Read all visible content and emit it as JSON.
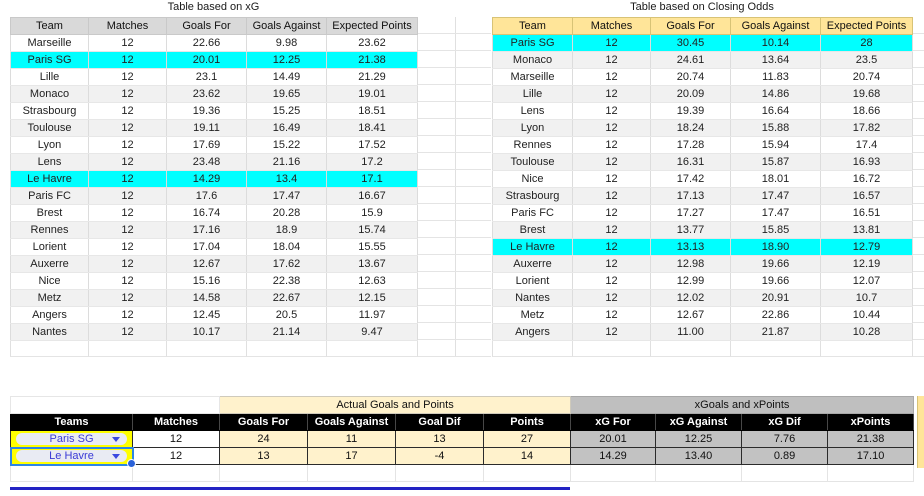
{
  "shared_columns": [
    "Team",
    "Matches",
    "Goals For",
    "Goals Against",
    "Expected Points"
  ],
  "xg_table": {
    "title": "Table based on xG",
    "rows": [
      {
        "team": "Marseille",
        "matches": "12",
        "goals_for": "22.66",
        "goals_against": "9.98",
        "expected_points": "23.62",
        "highlight": false
      },
      {
        "team": "Paris SG",
        "matches": "12",
        "goals_for": "20.01",
        "goals_against": "12.25",
        "expected_points": "21.38",
        "highlight": true
      },
      {
        "team": "Lille",
        "matches": "12",
        "goals_for": "23.1",
        "goals_against": "14.49",
        "expected_points": "21.29",
        "highlight": false
      },
      {
        "team": "Monaco",
        "matches": "12",
        "goals_for": "23.62",
        "goals_against": "19.65",
        "expected_points": "19.01",
        "highlight": false
      },
      {
        "team": "Strasbourg",
        "matches": "12",
        "goals_for": "19.36",
        "goals_against": "15.25",
        "expected_points": "18.51",
        "highlight": false
      },
      {
        "team": "Toulouse",
        "matches": "12",
        "goals_for": "19.11",
        "goals_against": "16.49",
        "expected_points": "18.41",
        "highlight": false
      },
      {
        "team": "Lyon",
        "matches": "12",
        "goals_for": "17.69",
        "goals_against": "15.22",
        "expected_points": "17.52",
        "highlight": false
      },
      {
        "team": "Lens",
        "matches": "12",
        "goals_for": "23.48",
        "goals_against": "21.16",
        "expected_points": "17.2",
        "highlight": false
      },
      {
        "team": "Le Havre",
        "matches": "12",
        "goals_for": "14.29",
        "goals_against": "13.4",
        "expected_points": "17.1",
        "highlight": true
      },
      {
        "team": "Paris FC",
        "matches": "12",
        "goals_for": "17.6",
        "goals_against": "17.47",
        "expected_points": "16.67",
        "highlight": false
      },
      {
        "team": "Brest",
        "matches": "12",
        "goals_for": "16.74",
        "goals_against": "20.28",
        "expected_points": "15.9",
        "highlight": false
      },
      {
        "team": "Rennes",
        "matches": "12",
        "goals_for": "17.16",
        "goals_against": "18.9",
        "expected_points": "15.74",
        "highlight": false
      },
      {
        "team": "Lorient",
        "matches": "12",
        "goals_for": "17.04",
        "goals_against": "18.04",
        "expected_points": "15.55",
        "highlight": false
      },
      {
        "team": "Auxerre",
        "matches": "12",
        "goals_for": "12.67",
        "goals_against": "17.62",
        "expected_points": "13.67",
        "highlight": false
      },
      {
        "team": "Nice",
        "matches": "12",
        "goals_for": "15.16",
        "goals_against": "22.38",
        "expected_points": "12.63",
        "highlight": false
      },
      {
        "team": "Metz",
        "matches": "12",
        "goals_for": "14.58",
        "goals_against": "22.67",
        "expected_points": "12.15",
        "highlight": false
      },
      {
        "team": "Angers",
        "matches": "12",
        "goals_for": "12.45",
        "goals_against": "20.5",
        "expected_points": "11.97",
        "highlight": false
      },
      {
        "team": "Nantes",
        "matches": "12",
        "goals_for": "10.17",
        "goals_against": "21.14",
        "expected_points": "9.47",
        "highlight": false
      }
    ]
  },
  "odds_table": {
    "title": "Table based on Closing Odds",
    "rows": [
      {
        "team": "Paris SG",
        "matches": "12",
        "goals_for": "30.45",
        "goals_against": "10.14",
        "expected_points": "28",
        "highlight": true
      },
      {
        "team": "Monaco",
        "matches": "12",
        "goals_for": "24.61",
        "goals_against": "13.64",
        "expected_points": "23.5",
        "highlight": false
      },
      {
        "team": "Marseille",
        "matches": "12",
        "goals_for": "20.74",
        "goals_against": "11.83",
        "expected_points": "20.74",
        "highlight": false
      },
      {
        "team": "Lille",
        "matches": "12",
        "goals_for": "20.09",
        "goals_against": "14.86",
        "expected_points": "19.68",
        "highlight": false
      },
      {
        "team": "Lens",
        "matches": "12",
        "goals_for": "19.39",
        "goals_against": "16.64",
        "expected_points": "18.66",
        "highlight": false
      },
      {
        "team": "Lyon",
        "matches": "12",
        "goals_for": "18.24",
        "goals_against": "15.88",
        "expected_points": "17.82",
        "highlight": false
      },
      {
        "team": "Rennes",
        "matches": "12",
        "goals_for": "17.28",
        "goals_against": "15.94",
        "expected_points": "17.4",
        "highlight": false
      },
      {
        "team": "Toulouse",
        "matches": "12",
        "goals_for": "16.31",
        "goals_against": "15.87",
        "expected_points": "16.93",
        "highlight": false
      },
      {
        "team": "Nice",
        "matches": "12",
        "goals_for": "17.42",
        "goals_against": "18.01",
        "expected_points": "16.72",
        "highlight": false
      },
      {
        "team": "Strasbourg",
        "matches": "12",
        "goals_for": "17.13",
        "goals_against": "17.47",
        "expected_points": "16.57",
        "highlight": false
      },
      {
        "team": "Paris FC",
        "matches": "12",
        "goals_for": "17.27",
        "goals_against": "17.47",
        "expected_points": "16.51",
        "highlight": false
      },
      {
        "team": "Brest",
        "matches": "12",
        "goals_for": "13.77",
        "goals_against": "15.85",
        "expected_points": "13.81",
        "highlight": false
      },
      {
        "team": "Le Havre",
        "matches": "12",
        "goals_for": "13.13",
        "goals_against": "18.90",
        "expected_points": "12.79",
        "highlight": true
      },
      {
        "team": "Auxerre",
        "matches": "12",
        "goals_for": "12.98",
        "goals_against": "19.66",
        "expected_points": "12.19",
        "highlight": false
      },
      {
        "team": "Lorient",
        "matches": "12",
        "goals_for": "12.99",
        "goals_against": "19.66",
        "expected_points": "12.07",
        "highlight": false
      },
      {
        "team": "Nantes",
        "matches": "12",
        "goals_for": "12.02",
        "goals_against": "20.91",
        "expected_points": "10.7",
        "highlight": false
      },
      {
        "team": "Metz",
        "matches": "12",
        "goals_for": "12.67",
        "goals_against": "22.86",
        "expected_points": "10.44",
        "highlight": false
      },
      {
        "team": "Angers",
        "matches": "12",
        "goals_for": "11.00",
        "goals_against": "21.87",
        "expected_points": "10.28",
        "highlight": false
      }
    ]
  },
  "comparison": {
    "actual_band": "Actual Goals and Points",
    "x_band": "xGoals and xPoints",
    "headers": [
      "Teams",
      "Matches",
      "Goals For",
      "Goals Against",
      "Goal Dif",
      "Points",
      "xG For",
      "xG Against",
      "xG Dif",
      "xPoints"
    ],
    "rows": [
      {
        "team": "Paris SG",
        "selected": false,
        "values": [
          "12",
          "24",
          "11",
          "13",
          "27",
          "20.01",
          "12.25",
          "7.76",
          "21.38"
        ]
      },
      {
        "team": "Le Havre",
        "selected": true,
        "values": [
          "12",
          "13",
          "17",
          "-4",
          "14",
          "14.29",
          "13.40",
          "0.89",
          "17.10"
        ]
      }
    ]
  },
  "icons": {
    "dropdown_arrow": "chevron-down-icon",
    "selection_handle": "fill-handle-icon"
  },
  "colors": {
    "highlight_cyan": "#00ffff",
    "xg_header_gray": "#d9d9d9",
    "odds_header_khaki": "#ffe599",
    "actual_tan": "#fff2cc",
    "xstats_gray": "#bfbfbf",
    "row_stripe": "#f1f1f1",
    "dropdown_cell_yellow": "#ffff00",
    "chip_text_blue": "#3a3ad6",
    "selection_blue": "#2e86e5",
    "divider_blue": "#2323c3",
    "header_black": "#000000"
  }
}
